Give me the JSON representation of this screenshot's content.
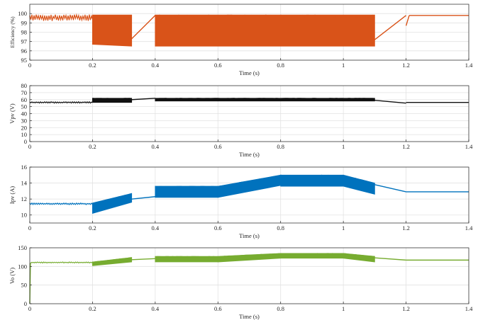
{
  "figure": {
    "background": "#ffffff",
    "grid": true,
    "axis_color": "#222222",
    "grid_color": "#e2e2e2"
  },
  "chart_data": [
    {
      "type": "line",
      "ylabel": "Efficiency (%)",
      "xlabel": "Time (s)",
      "color": "#d95319",
      "xlim": [
        0,
        1.4
      ],
      "ylim": [
        95,
        101
      ],
      "x_ticks": [
        "0",
        "0.2",
        "0.4",
        "0.6",
        "0.8",
        "1",
        "1.2",
        "1.4"
      ],
      "y_ticks": [
        "95",
        "96",
        "97",
        "98",
        "99",
        "100"
      ],
      "segments": [
        {
          "x": [
            0,
            0.2
          ],
          "mode": "ripple",
          "lo": 99.2,
          "hi": 99.9
        },
        {
          "x": [
            0.2,
            0.325
          ],
          "mode": "band",
          "lo": [
            96.7,
            96.5
          ],
          "hi": [
            99.85,
            99.85
          ]
        },
        {
          "x": [
            0.325,
            0.4
          ],
          "mode": "line",
          "y": [
            97.3,
            99.8
          ]
        },
        {
          "x": [
            0.4,
            1.1
          ],
          "mode": "band",
          "lo": [
            96.5,
            96.5
          ],
          "hi": [
            99.85,
            99.85
          ]
        },
        {
          "x": [
            1.1,
            1.2
          ],
          "mode": "line",
          "y": [
            97.2,
            99.8
          ]
        },
        {
          "x": [
            1.2,
            1.21
          ],
          "mode": "line",
          "y": [
            98.7,
            99.8
          ]
        },
        {
          "x": [
            1.21,
            1.4
          ],
          "mode": "line",
          "y": [
            99.8,
            99.8
          ]
        }
      ]
    },
    {
      "type": "line",
      "ylabel": "Vpv (V)",
      "xlabel": "Time (s)",
      "color": "#111111",
      "xlim": [
        0,
        1.4
      ],
      "ylim": [
        0,
        80
      ],
      "x_ticks": [
        "0",
        "0.2",
        "0.4",
        "0.6",
        "0.8",
        "1",
        "1.2",
        "1.4"
      ],
      "y_ticks": [
        "0",
        "10",
        "20",
        "30",
        "40",
        "50",
        "60",
        "70",
        "80"
      ],
      "segments": [
        {
          "x": [
            0,
            0.2
          ],
          "mode": "ripple",
          "lo": 55,
          "hi": 57
        },
        {
          "x": [
            0.2,
            0.325
          ],
          "mode": "band",
          "lo": [
            56,
            56
          ],
          "hi": [
            62,
            62
          ]
        },
        {
          "x": [
            0.325,
            0.4
          ],
          "mode": "line",
          "y": [
            60,
            62
          ]
        },
        {
          "x": [
            0.4,
            1.1
          ],
          "mode": "band",
          "lo": [
            58,
            58
          ],
          "hi": [
            62,
            62
          ]
        },
        {
          "x": [
            1.1,
            1.2
          ],
          "mode": "line",
          "y": [
            59,
            55
          ]
        },
        {
          "x": [
            1.2,
            1.4
          ],
          "mode": "line",
          "y": [
            56,
            56
          ]
        }
      ]
    },
    {
      "type": "line",
      "ylabel": "Ipv (A)",
      "xlabel": "Time (s)",
      "color": "#0072bd",
      "xlim": [
        0,
        1.4
      ],
      "ylim": [
        9,
        16
      ],
      "x_ticks": [
        "0",
        "0.2",
        "0.4",
        "0.6",
        "0.8",
        "1",
        "1.2",
        "1.4"
      ],
      "y_ticks": [
        "10",
        "12",
        "14",
        "16"
      ],
      "segments": [
        {
          "x": [
            0,
            0.2
          ],
          "mode": "ripple",
          "lo": 11.3,
          "hi": 11.5
        },
        {
          "x": [
            0.2,
            0.325
          ],
          "mode": "band",
          "lo": [
            10.2,
            11.6
          ],
          "hi": [
            11.5,
            12.7
          ]
        },
        {
          "x": [
            0.325,
            0.4
          ],
          "mode": "line",
          "y": [
            12.0,
            12.3
          ]
        },
        {
          "x": [
            0.4,
            0.6
          ],
          "mode": "band",
          "lo": [
            12.2,
            12.2
          ],
          "hi": [
            13.6,
            13.6
          ]
        },
        {
          "x": [
            0.6,
            0.8
          ],
          "mode": "band",
          "lo": [
            12.2,
            13.7
          ],
          "hi": [
            13.6,
            15.0
          ]
        },
        {
          "x": [
            0.8,
            1.0
          ],
          "mode": "band",
          "lo": [
            13.6,
            13.6
          ],
          "hi": [
            15.0,
            15.0
          ]
        },
        {
          "x": [
            1.0,
            1.1
          ],
          "mode": "band",
          "lo": [
            13.6,
            12.6
          ],
          "hi": [
            15.0,
            14.0
          ]
        },
        {
          "x": [
            1.1,
            1.2
          ],
          "mode": "line",
          "y": [
            13.8,
            12.9
          ]
        },
        {
          "x": [
            1.2,
            1.4
          ],
          "mode": "line",
          "y": [
            12.9,
            12.9
          ]
        }
      ]
    },
    {
      "type": "line",
      "ylabel": "Vo (V)",
      "xlabel": "Time (s)",
      "color": "#77ac30",
      "xlim": [
        0,
        1.4
      ],
      "ylim": [
        0,
        150
      ],
      "x_ticks": [
        "0",
        "0.2",
        "0.4",
        "0.6",
        "0.8",
        "1",
        "1.2",
        "1.4"
      ],
      "y_ticks": [
        "0",
        "50",
        "100",
        "150"
      ],
      "startup": {
        "x": [
          0,
          0.002,
          0.004
        ],
        "y": [
          0,
          108,
          110
        ]
      },
      "segments": [
        {
          "x": [
            0.004,
            0.2
          ],
          "mode": "ripple",
          "lo": 109,
          "hi": 112
        },
        {
          "x": [
            0.2,
            0.325
          ],
          "mode": "band",
          "lo": [
            102,
            112
          ],
          "hi": [
            112,
            124
          ]
        },
        {
          "x": [
            0.325,
            0.4
          ],
          "mode": "line",
          "y": [
            118,
            121
          ]
        },
        {
          "x": [
            0.4,
            0.6
          ],
          "mode": "band",
          "lo": [
            112,
            112
          ],
          "hi": [
            127,
            127
          ]
        },
        {
          "x": [
            0.6,
            0.8
          ],
          "mode": "band",
          "lo": [
            112,
            122
          ],
          "hi": [
            127,
            135
          ]
        },
        {
          "x": [
            0.8,
            1.0
          ],
          "mode": "band",
          "lo": [
            122,
            122
          ],
          "hi": [
            135,
            135
          ]
        },
        {
          "x": [
            1.0,
            1.1
          ],
          "mode": "band",
          "lo": [
            122,
            112
          ],
          "hi": [
            135,
            127
          ]
        },
        {
          "x": [
            1.1,
            1.2
          ],
          "mode": "line",
          "y": [
            123,
            117
          ]
        },
        {
          "x": [
            1.2,
            1.4
          ],
          "mode": "line",
          "y": [
            117,
            117
          ]
        }
      ]
    }
  ]
}
